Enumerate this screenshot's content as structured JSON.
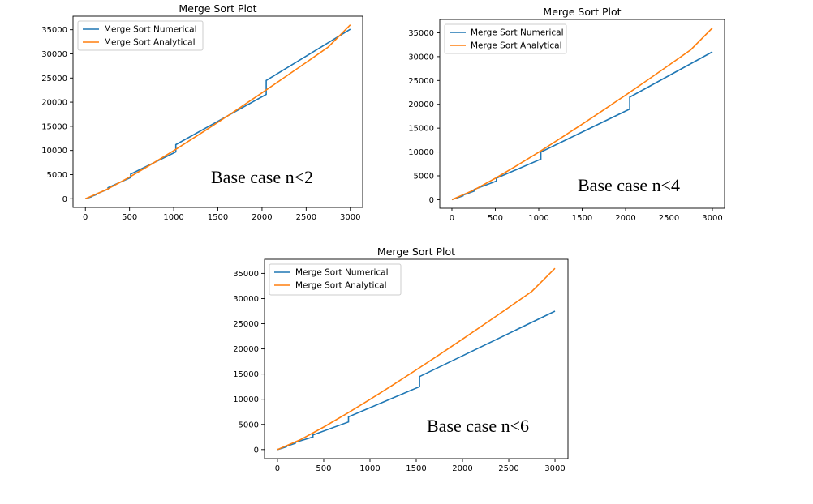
{
  "chart_data": [
    {
      "type": "line",
      "title": "Merge Sort Plot",
      "xlim": [
        -140,
        3140
      ],
      "ylim": [
        -1800,
        37800
      ],
      "xticks": [
        0,
        500,
        1000,
        1500,
        2000,
        2500,
        3000
      ],
      "yticks": [
        0,
        5000,
        10000,
        15000,
        20000,
        25000,
        30000,
        35000
      ],
      "legend": "upper-left",
      "annotation": "Base case n<2",
      "series": [
        {
          "name": "Merge Sort Numerical",
          "color": "#1f77b4",
          "x": [
            0,
            64,
            64,
            128,
            128,
            256,
            256,
            512,
            512,
            1024,
            1024,
            2048,
            2048,
            3000
          ],
          "y": [
            0,
            380,
            450,
            900,
            1000,
            2000,
            2300,
            4400,
            5100,
            9700,
            11200,
            21600,
            24500,
            35100
          ]
        },
        {
          "name": "Merge Sort Analytical",
          "color": "#ff7f0e",
          "x": [
            0,
            250,
            500,
            750,
            1000,
            1250,
            1500,
            1750,
            2000,
            2250,
            2500,
            2750,
            3000
          ],
          "y": [
            0,
            1990,
            4483,
            7170,
            9966,
            12860,
            15825,
            18860,
            21930,
            25060,
            28220,
            31420,
            36000
          ]
        }
      ]
    },
    {
      "type": "line",
      "title": "Merge Sort Plot",
      "xlim": [
        -140,
        3140
      ],
      "ylim": [
        -1800,
        37800
      ],
      "xticks": [
        0,
        500,
        1000,
        1500,
        2000,
        2500,
        3000
      ],
      "yticks": [
        0,
        5000,
        10000,
        15000,
        20000,
        25000,
        30000,
        35000
      ],
      "legend": "upper-left",
      "annotation": "Base case n<4",
      "series": [
        {
          "name": "Merge Sort Numerical",
          "color": "#1f77b4",
          "x": [
            0,
            128,
            128,
            256,
            256,
            512,
            512,
            1024,
            1024,
            2048,
            2048,
            3000
          ],
          "y": [
            0,
            800,
            950,
            1800,
            2150,
            3900,
            4500,
            8500,
            10000,
            19000,
            21500,
            31000
          ]
        },
        {
          "name": "Merge Sort Analytical",
          "color": "#ff7f0e",
          "x": [
            0,
            250,
            500,
            750,
            1000,
            1250,
            1500,
            1750,
            2000,
            2250,
            2500,
            2750,
            3000
          ],
          "y": [
            0,
            1990,
            4483,
            7170,
            9966,
            12860,
            15825,
            18860,
            21930,
            25060,
            28220,
            31420,
            36000
          ]
        }
      ]
    },
    {
      "type": "line",
      "title": "Merge Sort Plot",
      "xlim": [
        -140,
        3140
      ],
      "ylim": [
        -1800,
        37800
      ],
      "xticks": [
        0,
        500,
        1000,
        1500,
        2000,
        2500,
        3000
      ],
      "yticks": [
        0,
        5000,
        10000,
        15000,
        20000,
        25000,
        30000,
        35000
      ],
      "legend": "upper-left",
      "annotation": "Base case n<6",
      "series": [
        {
          "name": "Merge Sort Numerical",
          "color": "#1f77b4",
          "x": [
            0,
            96,
            96,
            192,
            192,
            384,
            384,
            768,
            768,
            1536,
            1536,
            3000
          ],
          "y": [
            0,
            550,
            650,
            1250,
            1450,
            2500,
            2900,
            5500,
            6500,
            12500,
            14500,
            27500
          ]
        },
        {
          "name": "Merge Sort Analytical",
          "color": "#ff7f0e",
          "x": [
            0,
            250,
            500,
            750,
            1000,
            1250,
            1500,
            1750,
            2000,
            2250,
            2500,
            2750,
            3000
          ],
          "y": [
            0,
            1990,
            4483,
            7170,
            9966,
            12860,
            15825,
            18860,
            21930,
            25060,
            28220,
            31420,
            36000
          ]
        }
      ]
    }
  ]
}
